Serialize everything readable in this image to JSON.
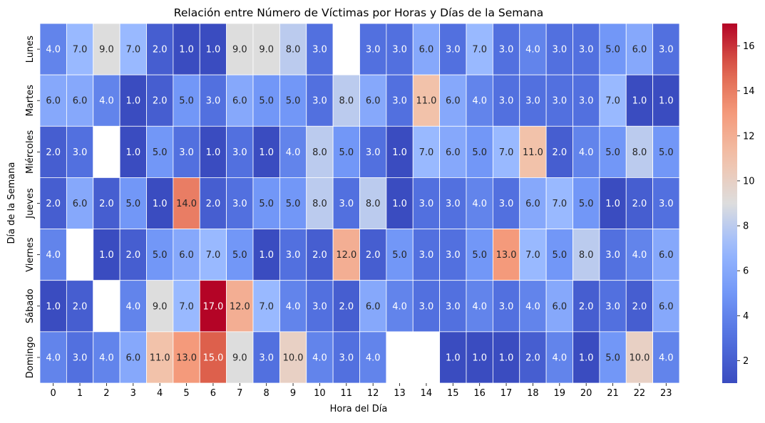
{
  "chart_data": {
    "type": "heatmap",
    "title": "Relación entre Número de Víctimas por Horas y Días de la Semana",
    "xlabel": "Hora del Día",
    "ylabel": "Día de la Semana",
    "x_categories": [
      "0",
      "1",
      "2",
      "3",
      "4",
      "5",
      "6",
      "7",
      "8",
      "9",
      "10",
      "11",
      "12",
      "13",
      "14",
      "15",
      "16",
      "17",
      "18",
      "19",
      "20",
      "21",
      "22",
      "23"
    ],
    "y_categories": [
      "Lunes",
      "Martes",
      "Miércoles",
      "Jueves",
      "Viernes",
      "Sábado",
      "Domingo"
    ],
    "values": [
      [
        4,
        7,
        9,
        7,
        2,
        1,
        1,
        9,
        9,
        8,
        3,
        null,
        3,
        3,
        6,
        3,
        7,
        3,
        4,
        3,
        3,
        5,
        6,
        3
      ],
      [
        6,
        6,
        4,
        1,
        2,
        5,
        3,
        6,
        5,
        5,
        3,
        8,
        6,
        3,
        11,
        6,
        4,
        3,
        3,
        3,
        3,
        7,
        1,
        1
      ],
      [
        2,
        3,
        null,
        1,
        5,
        3,
        1,
        3,
        1,
        4,
        8,
        5,
        3,
        1,
        7,
        6,
        5,
        7,
        11,
        2,
        4,
        5,
        8,
        5
      ],
      [
        2,
        6,
        2,
        5,
        1,
        14,
        2,
        3,
        5,
        5,
        8,
        3,
        8,
        1,
        3,
        3,
        4,
        3,
        6,
        7,
        5,
        1,
        2,
        3
      ],
      [
        4,
        null,
        1,
        2,
        5,
        6,
        7,
        5,
        1,
        3,
        2,
        12,
        2,
        5,
        3,
        3,
        5,
        13,
        7,
        5,
        8,
        3,
        4,
        6
      ],
      [
        1,
        2,
        null,
        4,
        9,
        7,
        17,
        12,
        7,
        4,
        3,
        2,
        6,
        4,
        3,
        3,
        4,
        3,
        4,
        6,
        2,
        3,
        2,
        6
      ],
      [
        4,
        3,
        4,
        6,
        11,
        13,
        15,
        9,
        3,
        10,
        4,
        3,
        4,
        null,
        null,
        1,
        1,
        1,
        2,
        4,
        1,
        5,
        10,
        4
      ]
    ],
    "value_format": "one decimal",
    "vmin": 1,
    "vmax": 17,
    "colormap": "coolwarm",
    "colorbar_ticks": [
      "2",
      "4",
      "6",
      "8",
      "10",
      "12",
      "14",
      "16"
    ],
    "colorbar_tick_values": [
      2,
      4,
      6,
      8,
      10,
      12,
      14,
      16
    ],
    "cell_line_color": "#ffffff",
    "missing_color": "#ffffff"
  }
}
